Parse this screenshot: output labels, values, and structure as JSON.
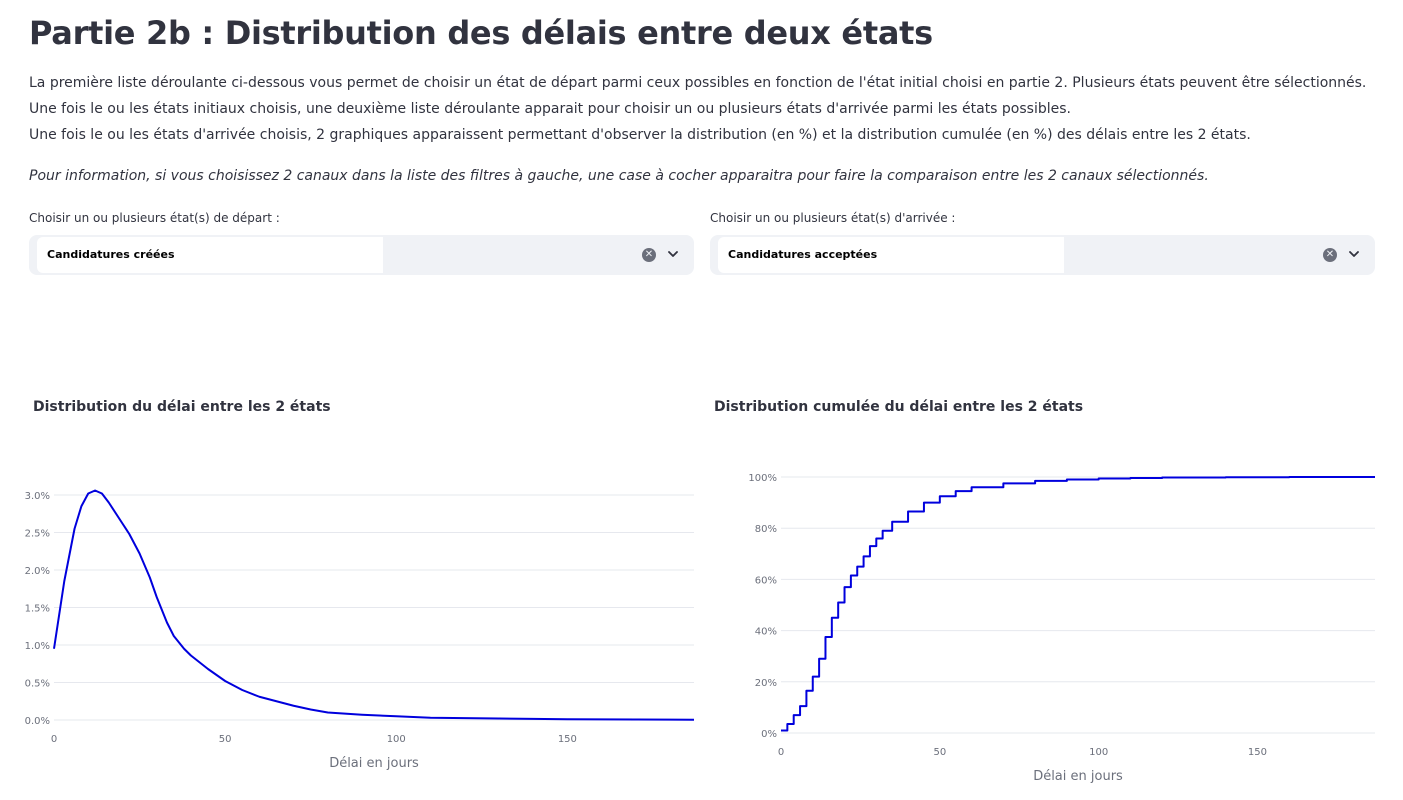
{
  "page": {
    "title": "Partie 2b : Distribution des délais entre deux états",
    "paragraphs": [
      "La première liste déroulante ci-dessous vous permet de choisir un état de départ parmi ceux possibles en fonction de l'état initial choisi en partie 2. Plusieurs états peuvent être sélectionnés.",
      "Une fois le ou les états initiaux choisis, une deuxième liste déroulante apparait pour choisir un ou plusieurs états d'arrivée parmi les états possibles.",
      "Une fois le ou les états d'arrivée choisis, 2 graphiques apparaissent permettant d'observer la distribution (en %) et la distribution cumulée (en %) des délais entre les 2 états."
    ],
    "note": "Pour information, si vous choisissez 2 canaux dans la liste des filtres à gauche, une case à cocher apparaitra pour faire la comparaison entre les 2 canaux sélectionnés."
  },
  "select_start": {
    "label": "Choisir un ou plusieurs état(s) de départ :",
    "value": "Candidatures créées",
    "clear_icon": "clear-circle-icon",
    "chevron_icon": "chevron-down-icon"
  },
  "select_end": {
    "label": "Choisir un ou plusieurs état(s) d'arrivée :",
    "value": "Candidatures acceptées",
    "clear_icon": "clear-circle-icon",
    "chevron_icon": "chevron-down-icon"
  },
  "chart_data": [
    {
      "type": "line",
      "title": "Distribution du délai entre les 2 états",
      "xlabel": "Délai en jours",
      "ylabel": "",
      "xlim": [
        0,
        187
      ],
      "ylim": [
        0,
        3.2
      ],
      "x_ticks": [
        0,
        50,
        100,
        150
      ],
      "y_ticks": [
        0,
        0.5,
        1.0,
        1.5,
        2.0,
        2.5,
        3.0
      ],
      "y_tick_labels": [
        "0.0%",
        "0.5%",
        "1.0%",
        "1.5%",
        "2.0%",
        "2.5%",
        "3.0%"
      ],
      "grid": true,
      "color": "#0000dd",
      "x": [
        0,
        3,
        6,
        8,
        10,
        12,
        14,
        16,
        20,
        22,
        25,
        28,
        30,
        33,
        35,
        38,
        40,
        45,
        50,
        55,
        60,
        65,
        70,
        75,
        80,
        90,
        100,
        110,
        120,
        130,
        140,
        150,
        160,
        170,
        180,
        187
      ],
      "y": [
        0.95,
        1.85,
        2.55,
        2.85,
        3.02,
        3.06,
        3.02,
        2.9,
        2.62,
        2.48,
        2.22,
        1.9,
        1.64,
        1.3,
        1.12,
        0.95,
        0.86,
        0.68,
        0.52,
        0.4,
        0.31,
        0.25,
        0.19,
        0.14,
        0.1,
        0.07,
        0.05,
        0.03,
        0.025,
        0.02,
        0.015,
        0.01,
        0.008,
        0.006,
        0.005,
        0.004
      ]
    },
    {
      "type": "line",
      "title": "Distribution cumulée du délai entre les 2 états",
      "xlabel": "Délai en jours",
      "ylabel": "",
      "xlim": [
        0,
        187
      ],
      "ylim": [
        0,
        100
      ],
      "x_ticks": [
        0,
        50,
        100,
        150
      ],
      "y_ticks": [
        0,
        20,
        40,
        60,
        80,
        100
      ],
      "y_tick_labels": [
        "0%",
        "20%",
        "40%",
        "60%",
        "80%",
        "100%"
      ],
      "grid": true,
      "step": true,
      "color": "#0000dd",
      "x": [
        0,
        2,
        4,
        6,
        8,
        10,
        12,
        14,
        16,
        18,
        20,
        22,
        24,
        26,
        28,
        30,
        32,
        35,
        40,
        45,
        50,
        55,
        60,
        70,
        80,
        90,
        100,
        110,
        120,
        140,
        160,
        187
      ],
      "y": [
        1,
        3.5,
        7,
        10.5,
        16.5,
        22,
        29,
        37.5,
        45,
        51,
        57,
        61.5,
        65,
        69,
        73,
        76,
        79,
        82.5,
        86.5,
        90,
        92.5,
        94.5,
        96,
        97.5,
        98.5,
        99,
        99.4,
        99.6,
        99.8,
        99.9,
        100,
        100
      ]
    }
  ]
}
